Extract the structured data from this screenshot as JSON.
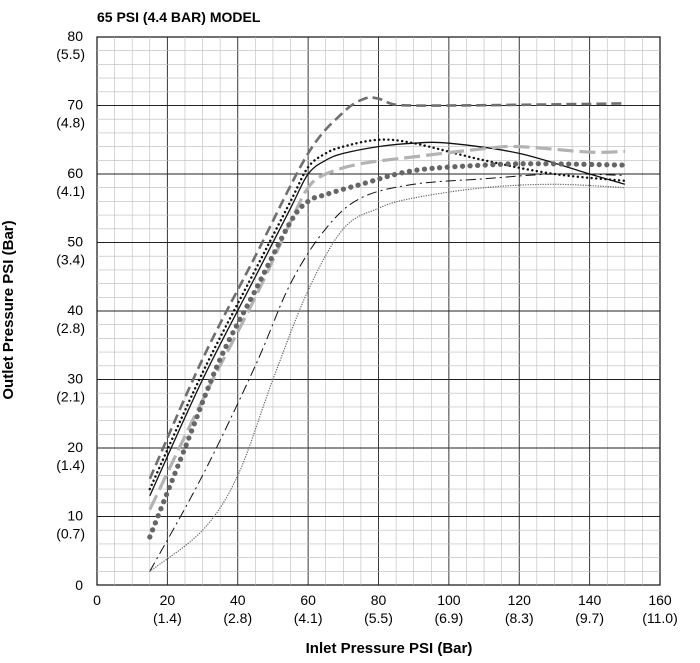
{
  "chart_data": {
    "type": "line",
    "title": "65 PSI (4.4 BAR) MODEL",
    "xlabel": "Inlet Pressure PSI (Bar)",
    "ylabel": "Outlet Pressure PSI (Bar)",
    "xlim": [
      0,
      160
    ],
    "ylim": [
      0,
      80
    ],
    "grid": true,
    "x_ticks": [
      {
        "value": 0,
        "label": "0",
        "sub": ""
      },
      {
        "value": 20,
        "label": "20",
        "sub": "(1.4)"
      },
      {
        "value": 40,
        "label": "40",
        "sub": "(2.8)"
      },
      {
        "value": 60,
        "label": "60",
        "sub": "(4.1)"
      },
      {
        "value": 80,
        "label": "80",
        "sub": "(5.5)"
      },
      {
        "value": 100,
        "label": "100",
        "sub": "(6.9)"
      },
      {
        "value": 120,
        "label": "120",
        "sub": "(8.3)"
      },
      {
        "value": 140,
        "label": "140",
        "sub": "(9.7)"
      },
      {
        "value": 160,
        "label": "160",
        "sub": "(11.0)"
      }
    ],
    "y_ticks": [
      {
        "value": 0,
        "label": "0",
        "sub": ""
      },
      {
        "value": 10,
        "label": "10",
        "sub": "(0.7)"
      },
      {
        "value": 20,
        "label": "20",
        "sub": "(1.4)"
      },
      {
        "value": 30,
        "label": "30",
        "sub": "(2.1)"
      },
      {
        "value": 40,
        "label": "40",
        "sub": "(2.8)"
      },
      {
        "value": 50,
        "label": "50",
        "sub": "(3.4)"
      },
      {
        "value": 60,
        "label": "60",
        "sub": "(4.1)"
      },
      {
        "value": 70,
        "label": "70",
        "sub": "(4.8)"
      },
      {
        "value": 80,
        "label": "80",
        "sub": "(5.5)"
      }
    ],
    "series": [
      {
        "style": "dark-gray-long-dash",
        "color": "#6f6f6f",
        "x": [
          15,
          30,
          45,
          60,
          70,
          76,
          80,
          84,
          90,
          100,
          120,
          150
        ],
        "y": [
          15.5,
          33,
          48,
          63,
          69,
          71,
          71,
          70.2,
          70,
          70,
          70.1,
          70.3
        ]
      },
      {
        "style": "black-small-dots",
        "color": "#111111",
        "x": [
          15,
          30,
          45,
          55,
          60,
          65,
          70,
          80,
          90,
          110,
          130,
          150
        ],
        "y": [
          14,
          31,
          46,
          56,
          61,
          63,
          64,
          65,
          64.5,
          62,
          60,
          59
        ]
      },
      {
        "style": "black-solid",
        "color": "#111111",
        "x": [
          15,
          30,
          45,
          55,
          60,
          65,
          70,
          80,
          90,
          100,
          120,
          140,
          150
        ],
        "y": [
          13,
          30,
          45,
          55,
          60,
          62,
          63,
          64,
          64.5,
          64.5,
          63,
          60,
          58.5
        ]
      },
      {
        "style": "light-gray-long-dash",
        "color": "#b3b3b3",
        "x": [
          15,
          30,
          45,
          55,
          60,
          65,
          75,
          90,
          110,
          120,
          140,
          150
        ],
        "y": [
          11,
          27,
          42,
          53,
          58,
          60,
          61.5,
          62.5,
          63.7,
          64,
          63.2,
          63.3
        ]
      },
      {
        "style": "gray-large-dots",
        "color": "#666666",
        "x": [
          15,
          25,
          35,
          45,
          55,
          60,
          65,
          75,
          90,
          110,
          125,
          150
        ],
        "y": [
          7,
          20,
          33,
          43,
          53,
          56,
          57,
          58.5,
          60.5,
          61.3,
          61.5,
          61.3
        ]
      },
      {
        "style": "black-dash-dot",
        "color": "#111111",
        "x": [
          15,
          30,
          45,
          55,
          65,
          75,
          90,
          110,
          130,
          150
        ],
        "y": [
          2,
          16,
          32,
          44,
          52,
          56.5,
          58.5,
          59.3,
          60,
          59.8
        ]
      },
      {
        "style": "gray-fine-dots",
        "color": "#666666",
        "x": [
          15,
          30,
          40,
          50,
          60,
          70,
          80,
          90,
          110,
          130,
          150
        ],
        "y": [
          2,
          8,
          16,
          30,
          43,
          52,
          55,
          56.5,
          58,
          58.5,
          58
        ]
      }
    ]
  }
}
